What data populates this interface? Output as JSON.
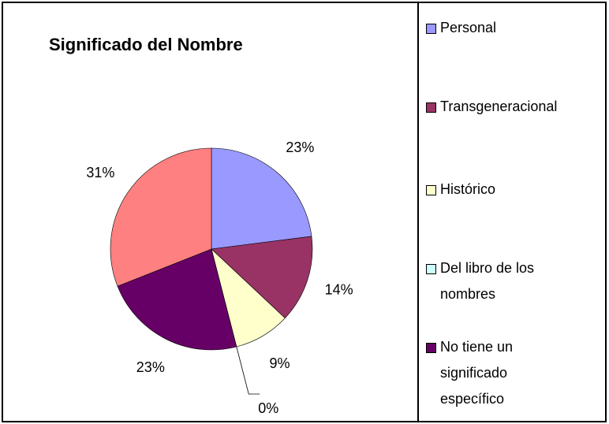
{
  "chart_data": {
    "type": "pie",
    "title": "Significado del Nombre",
    "categories": [
      "Personal",
      "Transgeneracional",
      "Histórico",
      "Del libro de los nombres",
      "No tiene un significado específico",
      null
    ],
    "values": [
      23,
      14,
      9,
      0,
      23,
      31
    ],
    "value_labels": [
      "23%",
      "14%",
      "9%",
      "0%",
      "23%",
      "31%"
    ],
    "colors": [
      "#9999ff",
      "#993366",
      "#ffffcc",
      "#ccffff",
      "#660066",
      "#ff8080"
    ]
  }
}
